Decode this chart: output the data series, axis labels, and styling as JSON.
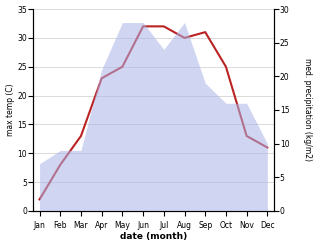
{
  "months": [
    "Jan",
    "Feb",
    "Mar",
    "Apr",
    "May",
    "Jun",
    "Jul",
    "Aug",
    "Sep",
    "Oct",
    "Nov",
    "Dec"
  ],
  "temperature": [
    2,
    8,
    13,
    23,
    25,
    32,
    32,
    30,
    31,
    25,
    13,
    11
  ],
  "precipitation": [
    7,
    9,
    9,
    21,
    28,
    28,
    24,
    28,
    19,
    16,
    16,
    10
  ],
  "temp_ylim": [
    0,
    35
  ],
  "precip_ylim": [
    0,
    30
  ],
  "temp_yticks": [
    0,
    5,
    10,
    15,
    20,
    25,
    30,
    35
  ],
  "precip_yticks": [
    0,
    5,
    10,
    15,
    20,
    25,
    30
  ],
  "ylabel_left": "max temp (C)",
  "ylabel_right": "med. precipitation (kg/m2)",
  "xlabel": "date (month)",
  "line_color": "#bb2222",
  "fill_color": "#aab4e8",
  "fill_alpha": 0.55,
  "background_color": "#ffffff",
  "line_width": 1.5,
  "figsize": [
    3.18,
    2.47
  ],
  "dpi": 100
}
